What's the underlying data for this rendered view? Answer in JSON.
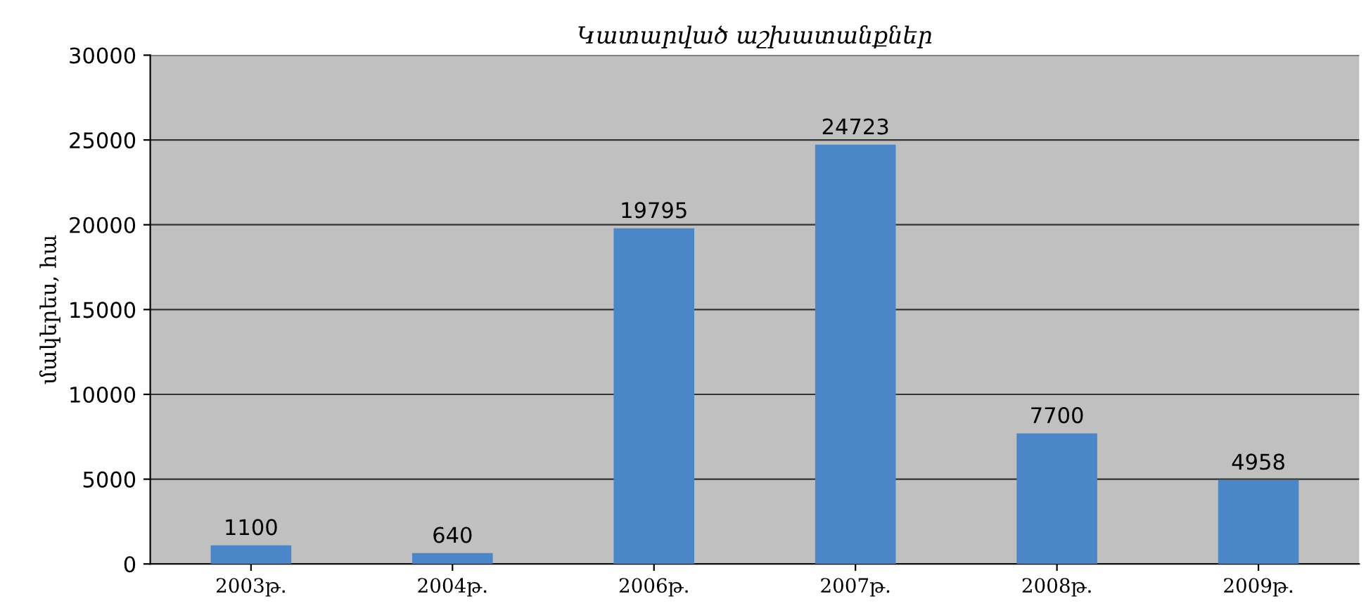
{
  "chart_data": {
    "type": "bar",
    "title": "Կատարված աշխատանքներ",
    "ylabel": "մակերես, հա",
    "categories": [
      "2003թ.",
      "2004թ.",
      "2006թ.",
      "2007թ.",
      "2008թ.",
      "2009թ."
    ],
    "values": [
      1100,
      640,
      19795,
      24723,
      7700,
      4958
    ],
    "color": "#4a86c8",
    "ylim": [
      0,
      30000
    ],
    "yticks": [
      0,
      5000,
      10000,
      15000,
      20000,
      25000,
      30000
    ],
    "grid": "y",
    "data_labels": true
  }
}
